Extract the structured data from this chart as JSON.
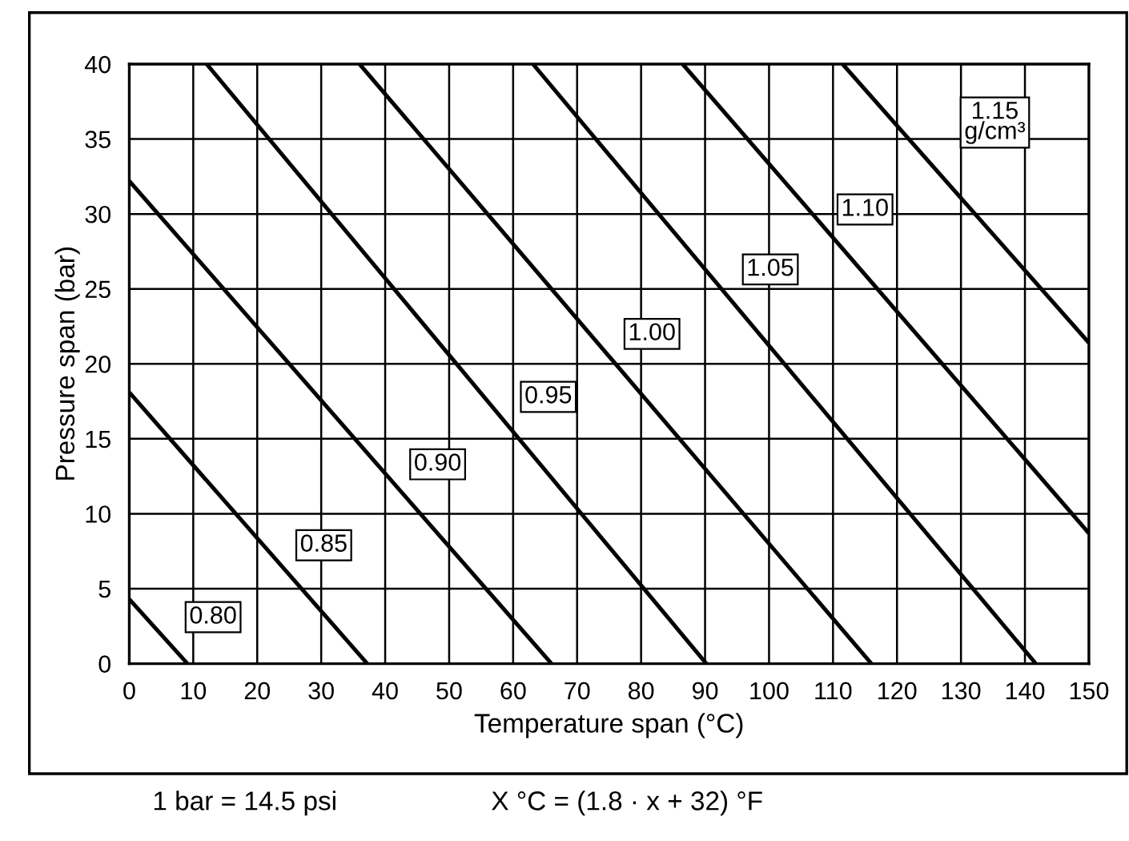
{
  "chart_data": {
    "type": "line",
    "xlabel": "Temperature span (°C)",
    "ylabel": "Pressure span (bar)",
    "xlim": [
      0,
      150
    ],
    "ylim": [
      0,
      40
    ],
    "xticks": [
      0,
      10,
      20,
      30,
      40,
      50,
      60,
      70,
      80,
      90,
      100,
      110,
      120,
      130,
      140,
      150
    ],
    "yticks": [
      0,
      5,
      10,
      15,
      20,
      25,
      30,
      35,
      40
    ],
    "grid": true,
    "series": [
      {
        "color": "#000000",
        "x": [
          0,
          9.1
        ],
        "values": [
          4.3,
          0
        ]
      },
      {
        "color": "#000000",
        "x": [
          0,
          37.2
        ],
        "values": [
          18.1,
          0
        ]
      },
      {
        "color": "#000000",
        "x": [
          0,
          66.0
        ],
        "values": [
          32.2,
          0
        ]
      },
      {
        "color": "#000000",
        "x": [
          12.1,
          90.2
        ],
        "values": [
          40,
          0
        ]
      },
      {
        "color": "#000000",
        "x": [
          36.0,
          116.0
        ],
        "values": [
          40,
          0
        ]
      },
      {
        "color": "#000000",
        "x": [
          63.1,
          141.7
        ],
        "values": [
          40,
          0
        ]
      },
      {
        "color": "#000000",
        "x": [
          86.5,
          150
        ],
        "values": [
          40,
          8.7
        ]
      },
      {
        "color": "#000000",
        "x": [
          111.5,
          150
        ],
        "values": [
          40,
          21.4
        ]
      }
    ],
    "annotations": [
      {
        "text": "0.80",
        "x": 13.1,
        "y": 3.1
      },
      {
        "text": "0.85",
        "x": 30.4,
        "y": 7.9
      },
      {
        "text": "0.90",
        "x": 48.2,
        "y": 13.3
      },
      {
        "text": "0.95",
        "x": 65.5,
        "y": 17.8
      },
      {
        "text": "1.00",
        "x": 81.7,
        "y": 22.0
      },
      {
        "text": "1.05",
        "x": 100.2,
        "y": 26.3
      },
      {
        "text": "1.10",
        "x": 115.0,
        "y": 30.3
      },
      {
        "text": "1.15\ng/cm³",
        "x": 135.3,
        "y": 36.1
      },
      "1 bar = 14.5 psi",
      "X °C = (1.8 · x + 32) °F"
    ]
  }
}
